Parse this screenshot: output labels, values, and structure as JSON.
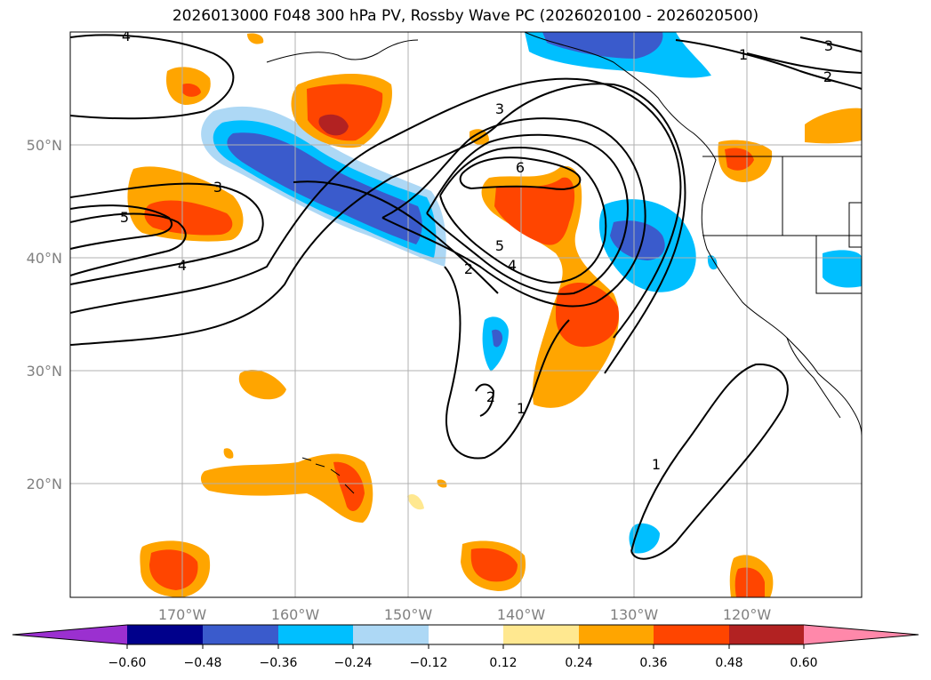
{
  "title": "2026013000 F048 300 hPa PV, Rossby Wave PC (2026020100 - 2026020500)",
  "map": {
    "lon_range": [
      -180,
      -110
    ],
    "lat_range": [
      10,
      60
    ],
    "lon_ticks": [
      "170°W",
      "160°W",
      "150°W",
      "140°W",
      "130°W",
      "120°W"
    ],
    "lat_ticks": [
      "20°N",
      "30°N",
      "40°N",
      "50°N"
    ],
    "contour_labels": [
      "4",
      "3",
      "5",
      "4",
      "3",
      "6",
      "5",
      "4",
      "2",
      "1",
      "2",
      "1",
      "1",
      "3",
      "2"
    ]
  },
  "colorbar": {
    "ticks": [
      "−0.60",
      "−0.48",
      "−0.36",
      "−0.24",
      "−0.12",
      "0.12",
      "0.24",
      "0.36",
      "0.48",
      "0.60"
    ],
    "colors": [
      "#9b30d0",
      "#00008b",
      "#3a5bcc",
      "#00bfff",
      "#add8f5",
      "#ffffff",
      "#ffe890",
      "#ffa500",
      "#ff4500",
      "#b22222",
      "#ff88aa"
    ]
  }
}
